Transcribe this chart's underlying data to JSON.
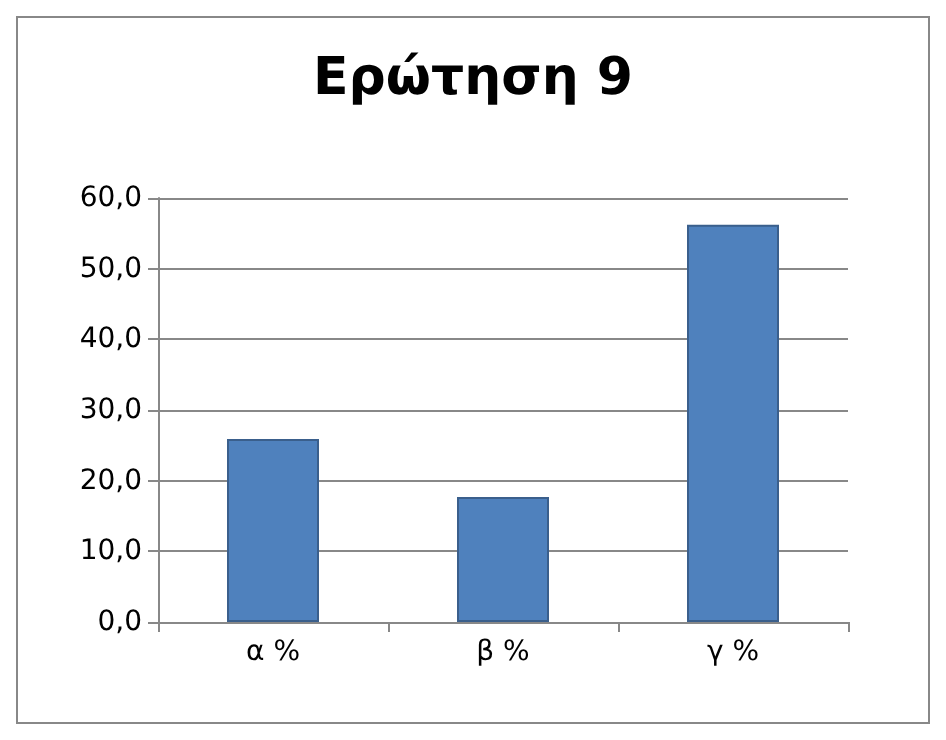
{
  "chart_data": {
    "type": "bar",
    "title": "Ερώτηση 9",
    "categories": [
      "α %",
      "β %",
      "γ %"
    ],
    "values": [
      25.9,
      17.7,
      56.2
    ],
    "color": "#4f81bd",
    "ylim": [
      0,
      60
    ],
    "yticks": [
      {
        "value": 0,
        "label": "0,0"
      },
      {
        "value": 10,
        "label": "10,0"
      },
      {
        "value": 20,
        "label": "20,0"
      },
      {
        "value": 30,
        "label": "30,0"
      },
      {
        "value": 40,
        "label": "40,0"
      },
      {
        "value": 50,
        "label": "50,0"
      },
      {
        "value": 60,
        "label": "60,0"
      }
    ],
    "grid": true
  }
}
